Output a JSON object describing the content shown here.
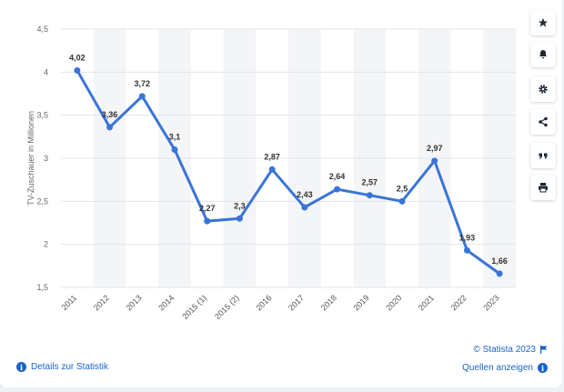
{
  "toolbar": {
    "buttons": [
      {
        "name": "favorite-button",
        "icon": "star-icon"
      },
      {
        "name": "notification-button",
        "icon": "bell-icon"
      },
      {
        "name": "settings-button",
        "icon": "gear-icon"
      },
      {
        "name": "share-button",
        "icon": "share-icon"
      },
      {
        "name": "cite-button",
        "icon": "quote-icon"
      },
      {
        "name": "print-button",
        "icon": "printer-icon"
      }
    ]
  },
  "footer": {
    "details_label": "Details zur Statistik",
    "copyright": "© Statista 2023",
    "sources_label": "Quellen anzeigen"
  },
  "colors": {
    "line": "#3a74d8",
    "accent": "#1a63c9",
    "band": "#f4f5f7",
    "grid": "#e3e5e8"
  },
  "chart_data": {
    "type": "line",
    "ylabel": "TV-Zuschauer in Millionen",
    "categories": [
      "2011",
      "2012",
      "2013",
      "2014",
      "2015 (1)",
      "2015 (2)",
      "2016",
      "2017",
      "2018",
      "2019",
      "2020",
      "2021",
      "2022",
      "2023"
    ],
    "values": [
      4.02,
      3.36,
      3.72,
      3.1,
      2.27,
      2.3,
      2.87,
      2.43,
      2.64,
      2.57,
      2.5,
      2.97,
      1.93,
      1.66
    ],
    "data_labels": [
      "4,02",
      "3,36",
      "3,72",
      "3,1",
      "2,27",
      "2,3",
      "2,87",
      "2,43",
      "2,64",
      "2,57",
      "2,5",
      "2,97",
      "1,93",
      "1,66"
    ],
    "ylim": [
      1.5,
      4.5
    ],
    "yticks": [
      1.5,
      2,
      2.5,
      3,
      3.5,
      4,
      4.5
    ],
    "ytick_labels": [
      "1,5",
      "2",
      "2,5",
      "3",
      "3,5",
      "4",
      "4,5"
    ],
    "grid": true
  }
}
